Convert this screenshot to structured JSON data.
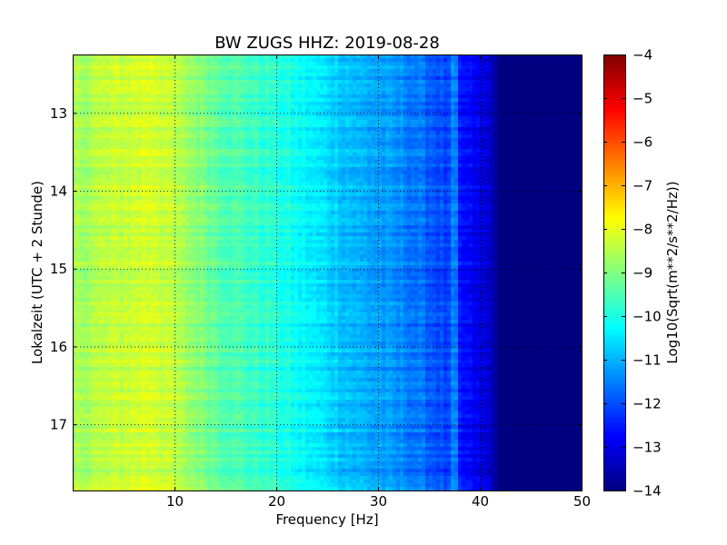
{
  "chart_data": {
    "type": "heatmap",
    "title": "BW ZUGS HHZ: 2019-08-28",
    "xlabel": "Frequency [Hz]",
    "ylabel": "Lokalzeit (UTC + 2 Stunde)",
    "xlim": [
      0,
      50
    ],
    "ylim": [
      12.25,
      17.85
    ],
    "y_inverted": true,
    "x_ticks": [
      10,
      20,
      30,
      40,
      50
    ],
    "x_tick_labels": [
      "10",
      "20",
      "30",
      "40",
      "50"
    ],
    "y_ticks": [
      13,
      14,
      15,
      16,
      17
    ],
    "y_tick_labels": [
      "13",
      "14",
      "15",
      "16",
      "17"
    ],
    "grid": true,
    "colormap": "jet",
    "colorbar": {
      "label": "Log10(Sqrt(m**2/s**2/Hz))",
      "range": [
        -14,
        -4
      ],
      "ticks": [
        -4,
        -5,
        -6,
        -7,
        -8,
        -9,
        -10,
        -11,
        -12,
        -13,
        -14
      ],
      "tick_labels": [
        "−4",
        "−5",
        "−6",
        "−7",
        "−8",
        "−9",
        "−10",
        "−11",
        "−12",
        "−13",
        "−14"
      ]
    },
    "spectrum_profile": {
      "frequency_hz": [
        0,
        2,
        5,
        8,
        10,
        15,
        20,
        22,
        25,
        28,
        30,
        33,
        35,
        37,
        37.5,
        38,
        40,
        41,
        42,
        50
      ],
      "log10_amplitude": [
        -8.7,
        -8.5,
        -8.3,
        -8.1,
        -8.5,
        -9.4,
        -9.9,
        -10.2,
        -10.6,
        -11.0,
        -11.2,
        -11.5,
        -11.8,
        -12.2,
        -11.2,
        -12.6,
        -13.0,
        -13.3,
        -14.0,
        -14.0
      ]
    }
  }
}
